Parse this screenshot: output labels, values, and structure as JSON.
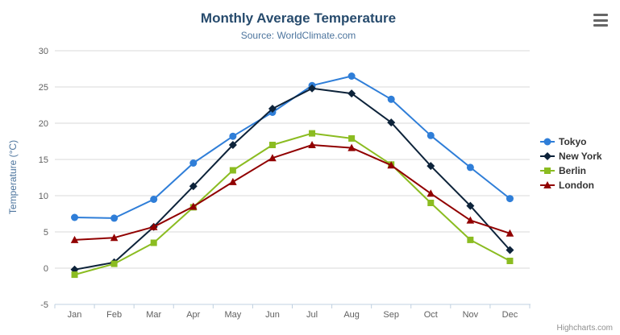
{
  "chart": {
    "title": "Monthly Average Temperature",
    "subtitle": "Source: WorldClimate.com",
    "y_axis_title": "Temperature (°C)",
    "credit": "Highcharts.com",
    "export_menu_icon": "hamburger-icon"
  },
  "colors": {
    "title": "#274b6d",
    "subtitle": "#4d759e",
    "axis_labels": "#606060",
    "axis_line": "#c0d0e0",
    "gridline": "#d8d8d8",
    "legend_text": "#333333",
    "credit_text": "#909090",
    "background": "#ffffff"
  },
  "chart_data": {
    "type": "line",
    "title": "Monthly Average Temperature",
    "subtitle": "Source: WorldClimate.com",
    "xlabel": "",
    "ylabel": "Temperature (°C)",
    "categories": [
      "Jan",
      "Feb",
      "Mar",
      "Apr",
      "May",
      "Jun",
      "Jul",
      "Aug",
      "Sep",
      "Oct",
      "Nov",
      "Dec"
    ],
    "ylim": [
      -5,
      30
    ],
    "yticks": [
      -5,
      0,
      5,
      10,
      15,
      20,
      25,
      30
    ],
    "grid": true,
    "legend_position": "right",
    "series": [
      {
        "name": "Tokyo",
        "color": "#2f7ed8",
        "marker": "circle",
        "values": [
          7.0,
          6.9,
          9.5,
          14.5,
          18.2,
          21.5,
          25.2,
          26.5,
          23.3,
          18.3,
          13.9,
          9.6
        ]
      },
      {
        "name": "New York",
        "color": "#0d233a",
        "marker": "diamond",
        "values": [
          -0.2,
          0.8,
          5.7,
          11.3,
          17.0,
          22.0,
          24.8,
          24.1,
          20.1,
          14.1,
          8.6,
          2.5
        ]
      },
      {
        "name": "Berlin",
        "color": "#8bbc21",
        "marker": "square",
        "values": [
          -0.9,
          0.6,
          3.5,
          8.4,
          13.5,
          17.0,
          18.6,
          17.9,
          14.3,
          9.0,
          3.9,
          1.0
        ]
      },
      {
        "name": "London",
        "color": "#910000",
        "marker": "triangle",
        "values": [
          3.9,
          4.2,
          5.7,
          8.5,
          11.9,
          15.2,
          17.0,
          16.6,
          14.2,
          10.3,
          6.6,
          4.8
        ]
      }
    ]
  }
}
